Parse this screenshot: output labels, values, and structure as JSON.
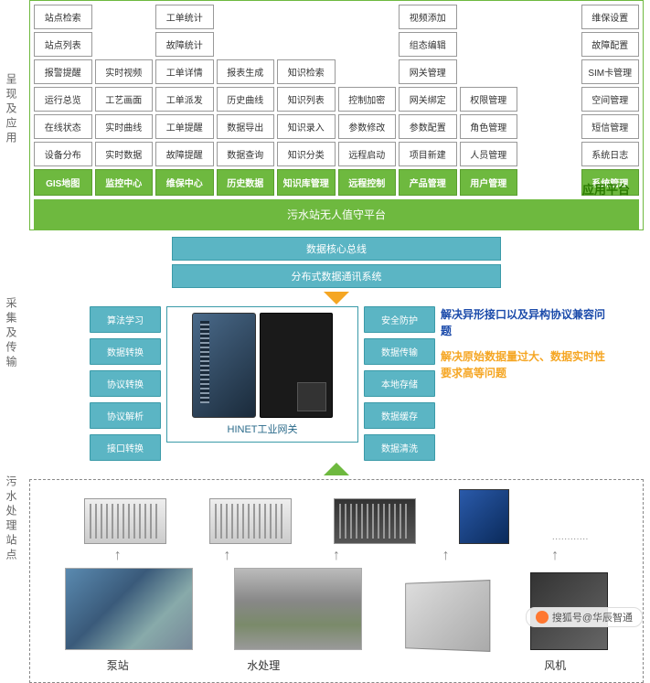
{
  "labels": {
    "section1": "呈现及应用",
    "section2": "采集及传输",
    "section3": "污水处理站点"
  },
  "grid_rows": [
    [
      "站点检索",
      "",
      "工单统计",
      "",
      "",
      "",
      "视频添加",
      "",
      "",
      "维保设置"
    ],
    [
      "站点列表",
      "",
      "故障统计",
      "",
      "",
      "",
      "组态编辑",
      "",
      "",
      "故障配置"
    ],
    [
      "报警提醒",
      "实时视频",
      "工单详情",
      "报表生成",
      "知识检索",
      "",
      "网关管理",
      "",
      "",
      "SIM卡管理"
    ],
    [
      "运行总览",
      "工艺画面",
      "工单派发",
      "历史曲线",
      "知识列表",
      "控制加密",
      "网关绑定",
      "权限管理",
      "",
      "空间管理"
    ],
    [
      "在线状态",
      "实时曲线",
      "工单提醒",
      "数据导出",
      "知识录入",
      "参数修改",
      "参数配置",
      "角色管理",
      "",
      "短信管理"
    ],
    [
      "设备分布",
      "实时数据",
      "故障提醒",
      "数据查询",
      "知识分类",
      "远程启动",
      "项目新建",
      "人员管理",
      "",
      "系统日志"
    ]
  ],
  "headers": [
    "GIS地图",
    "监控中心",
    "维保中心",
    "历史数据",
    "知识库管理",
    "远程控制",
    "产品管理",
    "用户管理",
    "",
    "系统管理"
  ],
  "platform_bar": "污水站无人值守平台",
  "platform_label": "应用平台",
  "teal1": "数据核心总线",
  "teal2": "分布式数据通讯系统",
  "left_pills": [
    "算法学习",
    "数据转换",
    "协议转换",
    "协议解析",
    "接口转换"
  ],
  "right_pills": [
    "安全防护",
    "数据传输",
    "本地存储",
    "数据缓存",
    "数据清洗"
  ],
  "gateway_title": "HINET工业网关",
  "side1": "解决异形接口以及异构协议兼容问题",
  "side2": "解决原始数据量过大、数据实时性要求高等问题",
  "bottom_labels": [
    "泵站",
    "水处理",
    "",
    "风机"
  ],
  "watermark": "搜狐号@华辰智通",
  "colors": {
    "green": "#6eb93f",
    "teal": "#5bb5c4",
    "orange": "#f5a623",
    "blue_text": "#1a4aaa"
  }
}
